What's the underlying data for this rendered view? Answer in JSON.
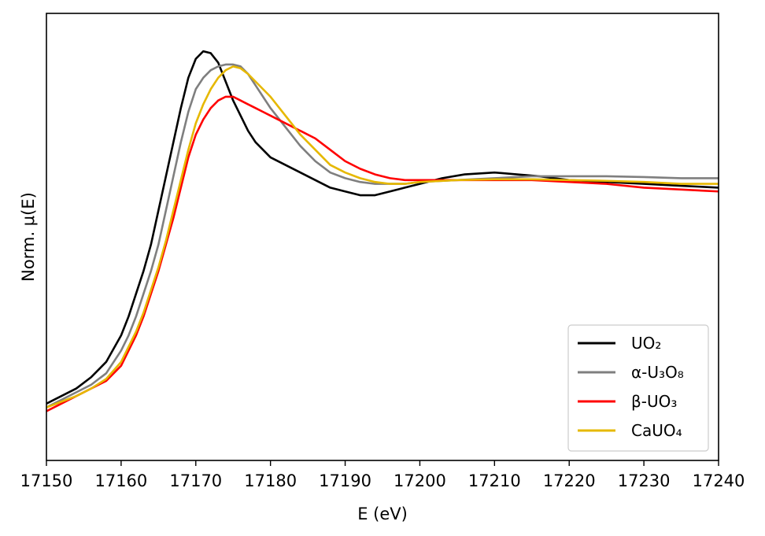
{
  "chart_data": {
    "type": "line",
    "xlabel": "E (eV)",
    "ylabel": "Norm. μ(E)",
    "xlim": [
      17150,
      17240
    ],
    "ylim": [
      0,
      1.18
    ],
    "xticks": [
      17150,
      17160,
      17170,
      17180,
      17190,
      17200,
      17210,
      17220,
      17230,
      17240
    ],
    "xtick_labels": [
      "17150",
      "17160",
      "17170",
      "17180",
      "17190",
      "17200",
      "17210",
      "17220",
      "17230",
      "17240"
    ],
    "yticks_shown": false,
    "grid": false,
    "legend_position": "bottom-right",
    "series": [
      {
        "name": "UO₂",
        "color": "#000000",
        "points": [
          [
            17150,
            0.15
          ],
          [
            17152,
            0.17
          ],
          [
            17154,
            0.19
          ],
          [
            17156,
            0.22
          ],
          [
            17158,
            0.26
          ],
          [
            17160,
            0.33
          ],
          [
            17161,
            0.38
          ],
          [
            17162,
            0.44
          ],
          [
            17163,
            0.5
          ],
          [
            17164,
            0.57
          ],
          [
            17165,
            0.66
          ],
          [
            17166,
            0.75
          ],
          [
            17167,
            0.84
          ],
          [
            17168,
            0.93
          ],
          [
            17169,
            1.01
          ],
          [
            17170,
            1.06
          ],
          [
            17171,
            1.08
          ],
          [
            17172,
            1.075
          ],
          [
            17173,
            1.05
          ],
          [
            17174,
            1.0
          ],
          [
            17175,
            0.95
          ],
          [
            17176,
            0.91
          ],
          [
            17177,
            0.87
          ],
          [
            17178,
            0.84
          ],
          [
            17179,
            0.82
          ],
          [
            17180,
            0.8
          ],
          [
            17182,
            0.78
          ],
          [
            17184,
            0.76
          ],
          [
            17186,
            0.74
          ],
          [
            17188,
            0.72
          ],
          [
            17190,
            0.71
          ],
          [
            17192,
            0.7
          ],
          [
            17194,
            0.7
          ],
          [
            17196,
            0.71
          ],
          [
            17198,
            0.72
          ],
          [
            17200,
            0.73
          ],
          [
            17203,
            0.745
          ],
          [
            17206,
            0.755
          ],
          [
            17210,
            0.76
          ],
          [
            17213,
            0.755
          ],
          [
            17216,
            0.75
          ],
          [
            17220,
            0.74
          ],
          [
            17225,
            0.735
          ],
          [
            17230,
            0.73
          ],
          [
            17235,
            0.725
          ],
          [
            17240,
            0.72
          ]
        ]
      },
      {
        "name": "α-U₃O₈",
        "color": "#7f7f7f",
        "points": [
          [
            17150,
            0.14
          ],
          [
            17152,
            0.16
          ],
          [
            17154,
            0.18
          ],
          [
            17156,
            0.2
          ],
          [
            17158,
            0.23
          ],
          [
            17160,
            0.29
          ],
          [
            17161,
            0.33
          ],
          [
            17162,
            0.38
          ],
          [
            17163,
            0.44
          ],
          [
            17164,
            0.5
          ],
          [
            17165,
            0.57
          ],
          [
            17166,
            0.66
          ],
          [
            17167,
            0.75
          ],
          [
            17168,
            0.84
          ],
          [
            17169,
            0.92
          ],
          [
            17170,
            0.98
          ],
          [
            17171,
            1.01
          ],
          [
            17172,
            1.03
          ],
          [
            17173,
            1.04
          ],
          [
            17174,
            1.045
          ],
          [
            17175,
            1.045
          ],
          [
            17176,
            1.04
          ],
          [
            17177,
            1.02
          ],
          [
            17178,
            0.99
          ],
          [
            17179,
            0.96
          ],
          [
            17180,
            0.93
          ],
          [
            17182,
            0.88
          ],
          [
            17184,
            0.83
          ],
          [
            17186,
            0.79
          ],
          [
            17188,
            0.76
          ],
          [
            17190,
            0.745
          ],
          [
            17192,
            0.735
          ],
          [
            17194,
            0.73
          ],
          [
            17196,
            0.73
          ],
          [
            17198,
            0.73
          ],
          [
            17200,
            0.735
          ],
          [
            17205,
            0.74
          ],
          [
            17210,
            0.745
          ],
          [
            17215,
            0.75
          ],
          [
            17220,
            0.75
          ],
          [
            17225,
            0.75
          ],
          [
            17230,
            0.748
          ],
          [
            17235,
            0.745
          ],
          [
            17240,
            0.745
          ]
        ]
      },
      {
        "name": "β-UO₃",
        "color": "#ff0000",
        "points": [
          [
            17150,
            0.13
          ],
          [
            17152,
            0.15
          ],
          [
            17154,
            0.17
          ],
          [
            17156,
            0.19
          ],
          [
            17158,
            0.21
          ],
          [
            17160,
            0.25
          ],
          [
            17161,
            0.29
          ],
          [
            17162,
            0.33
          ],
          [
            17163,
            0.38
          ],
          [
            17164,
            0.44
          ],
          [
            17165,
            0.5
          ],
          [
            17166,
            0.57
          ],
          [
            17167,
            0.64
          ],
          [
            17168,
            0.72
          ],
          [
            17169,
            0.8
          ],
          [
            17170,
            0.86
          ],
          [
            17171,
            0.9
          ],
          [
            17172,
            0.93
          ],
          [
            17173,
            0.95
          ],
          [
            17174,
            0.96
          ],
          [
            17175,
            0.96
          ],
          [
            17176,
            0.95
          ],
          [
            17177,
            0.94
          ],
          [
            17178,
            0.93
          ],
          [
            17179,
            0.92
          ],
          [
            17180,
            0.91
          ],
          [
            17182,
            0.89
          ],
          [
            17184,
            0.87
          ],
          [
            17186,
            0.85
          ],
          [
            17188,
            0.82
          ],
          [
            17190,
            0.79
          ],
          [
            17192,
            0.77
          ],
          [
            17194,
            0.755
          ],
          [
            17196,
            0.745
          ],
          [
            17198,
            0.74
          ],
          [
            17200,
            0.74
          ],
          [
            17205,
            0.74
          ],
          [
            17210,
            0.74
          ],
          [
            17215,
            0.74
          ],
          [
            17220,
            0.735
          ],
          [
            17225,
            0.73
          ],
          [
            17230,
            0.72
          ],
          [
            17235,
            0.715
          ],
          [
            17240,
            0.71
          ]
        ]
      },
      {
        "name": "CaUO₄",
        "color": "#e6b800",
        "points": [
          [
            17150,
            0.14
          ],
          [
            17152,
            0.155
          ],
          [
            17154,
            0.17
          ],
          [
            17156,
            0.19
          ],
          [
            17158,
            0.215
          ],
          [
            17160,
            0.26
          ],
          [
            17161,
            0.3
          ],
          [
            17162,
            0.34
          ],
          [
            17163,
            0.39
          ],
          [
            17164,
            0.45
          ],
          [
            17165,
            0.51
          ],
          [
            17166,
            0.58
          ],
          [
            17167,
            0.66
          ],
          [
            17168,
            0.74
          ],
          [
            17169,
            0.82
          ],
          [
            17170,
            0.89
          ],
          [
            17171,
            0.94
          ],
          [
            17172,
            0.98
          ],
          [
            17173,
            1.01
          ],
          [
            17174,
            1.03
          ],
          [
            17175,
            1.04
          ],
          [
            17176,
            1.035
          ],
          [
            17177,
            1.02
          ],
          [
            17178,
            1.0
          ],
          [
            17179,
            0.98
          ],
          [
            17180,
            0.96
          ],
          [
            17182,
            0.91
          ],
          [
            17184,
            0.86
          ],
          [
            17186,
            0.82
          ],
          [
            17188,
            0.78
          ],
          [
            17190,
            0.76
          ],
          [
            17192,
            0.745
          ],
          [
            17194,
            0.735
          ],
          [
            17196,
            0.73
          ],
          [
            17198,
            0.73
          ],
          [
            17200,
            0.735
          ],
          [
            17205,
            0.74
          ],
          [
            17210,
            0.742
          ],
          [
            17215,
            0.742
          ],
          [
            17220,
            0.74
          ],
          [
            17225,
            0.738
          ],
          [
            17230,
            0.735
          ],
          [
            17235,
            0.73
          ],
          [
            17240,
            0.73
          ]
        ]
      }
    ]
  }
}
